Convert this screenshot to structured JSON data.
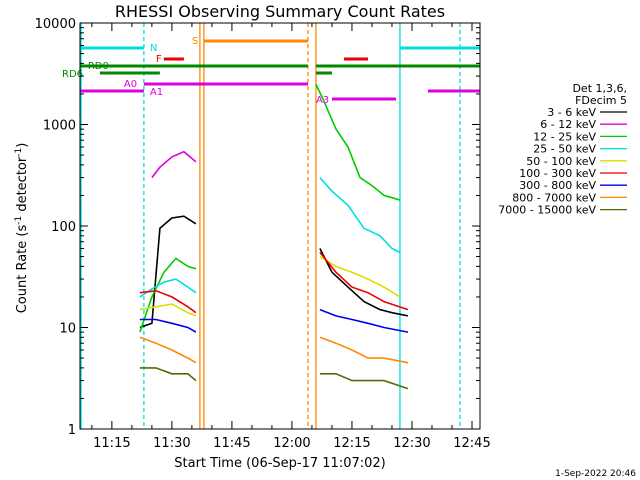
{
  "chart_data": {
    "type": "line",
    "title": "RHESSI Observing Summary Count Rates",
    "xlabel": "Start Time (06-Sep-17 11:07:02)",
    "ylabel_main": "Count Rate (s",
    "ylabel_sup1": "-1",
    "ylabel_mid": " detector",
    "ylabel_sup2": "-1",
    "ylabel_end": ")",
    "yscale": "log",
    "ylim": [
      1,
      10000
    ],
    "xlim": [
      "11:07:02",
      "12:47:00"
    ],
    "x_ticks": [
      "11:15",
      "11:30",
      "11:45",
      "12:00",
      "12:15",
      "12:30",
      "12:45"
    ],
    "y_ticks": [
      "1",
      "10",
      "100",
      "1000",
      "10000"
    ],
    "legend_header": [
      "Det 1,3,6,",
      "FDecim 5"
    ],
    "series": [
      {
        "name": "3 - 6 keV",
        "color": "#000000",
        "x": [
          "11:22",
          "11:25",
          "11:27",
          "11:30",
          "11:33",
          "11:36",
          "12:07",
          "12:10",
          "12:14",
          "12:18",
          "12:22",
          "12:25",
          "12:29"
        ],
        "values": [
          10,
          11,
          95,
          120,
          125,
          105,
          60,
          35,
          25,
          18,
          15,
          14,
          13
        ]
      },
      {
        "name": "6 - 12 keV",
        "color": "#dd00dd",
        "x": [
          "11:25",
          "11:27",
          "11:30",
          "11:33",
          "11:36"
        ],
        "values": [
          300,
          380,
          480,
          540,
          430
        ]
      },
      {
        "name": "12 - 25 keV",
        "color": "#00cc00",
        "x": [
          "11:22",
          "11:25",
          "11:28",
          "11:31",
          "11:34",
          "11:36",
          "12:06",
          "12:08",
          "12:11",
          "12:14",
          "12:17",
          "12:20",
          "12:23",
          "12:25",
          "12:27"
        ],
        "values": [
          9,
          20,
          35,
          48,
          40,
          38,
          2500,
          1700,
          900,
          600,
          300,
          250,
          200,
          190,
          180
        ]
      },
      {
        "name": "25 - 50 keV",
        "color": "#00dddd",
        "x": [
          "11:22",
          "11:25",
          "11:28",
          "11:31",
          "11:34",
          "11:36",
          "12:07",
          "12:10",
          "12:14",
          "12:18",
          "12:22",
          "12:25",
          "12:27"
        ],
        "values": [
          20,
          24,
          28,
          30,
          25,
          22,
          300,
          220,
          160,
          95,
          80,
          60,
          55
        ]
      },
      {
        "name": "50 - 100 keV",
        "color": "#dddd00",
        "x": [
          "11:22",
          "11:26",
          "11:30",
          "11:34",
          "11:36",
          "12:07",
          "12:11",
          "12:15",
          "12:19",
          "12:23",
          "12:27"
        ],
        "values": [
          15,
          16,
          17,
          14,
          13,
          50,
          40,
          35,
          30,
          25,
          20
        ]
      },
      {
        "name": "100 - 300 keV",
        "color": "#ee0000",
        "x": [
          "11:22",
          "11:26",
          "11:30",
          "11:34",
          "11:36",
          "12:07",
          "12:11",
          "12:15",
          "12:19",
          "12:23",
          "12:29"
        ],
        "values": [
          22,
          23,
          20,
          16,
          14,
          55,
          35,
          25,
          22,
          18,
          15
        ]
      },
      {
        "name": "300 - 800 keV",
        "color": "#0000ee",
        "x": [
          "11:22",
          "11:26",
          "11:30",
          "11:34",
          "11:36",
          "12:07",
          "12:11",
          "12:15",
          "12:19",
          "12:23",
          "12:29"
        ],
        "values": [
          12,
          12,
          11,
          10,
          9,
          15,
          13,
          12,
          11,
          10,
          9
        ]
      },
      {
        "name": "800 - 7000 keV",
        "color": "#ff8800",
        "x": [
          "11:22",
          "11:26",
          "11:30",
          "11:34",
          "11:36",
          "12:07",
          "12:11",
          "12:15",
          "12:19",
          "12:23",
          "12:29"
        ],
        "values": [
          8,
          7,
          6,
          5,
          4.5,
          8,
          7,
          6,
          5,
          5,
          4.5
        ]
      },
      {
        "name": "7000 - 15000 keV",
        "color": "#556b00",
        "x": [
          "11:22",
          "11:26",
          "11:30",
          "11:34",
          "11:36",
          "12:07",
          "12:11",
          "12:15",
          "12:19",
          "12:23",
          "12:29"
        ],
        "values": [
          4,
          4,
          3.5,
          3.5,
          3,
          3.5,
          3.5,
          3,
          3,
          3,
          2.5
        ]
      }
    ],
    "annotations": {
      "flags": [
        {
          "label": "N",
          "color": "#00dddd"
        },
        {
          "label": "F",
          "color": "#ee0000"
        },
        {
          "label": "S",
          "color": "#ff8800"
        },
        {
          "label": "RD0",
          "color": "#008800"
        },
        {
          "label": "RD6",
          "color": "#008800"
        },
        {
          "label": "A0",
          "color": "#dd00dd"
        },
        {
          "label": "A1",
          "color": "#dd00dd"
        },
        {
          "label": "A3",
          "color": "#dd00dd"
        }
      ]
    },
    "footer_date": "1-Sep-2022 20:46"
  }
}
